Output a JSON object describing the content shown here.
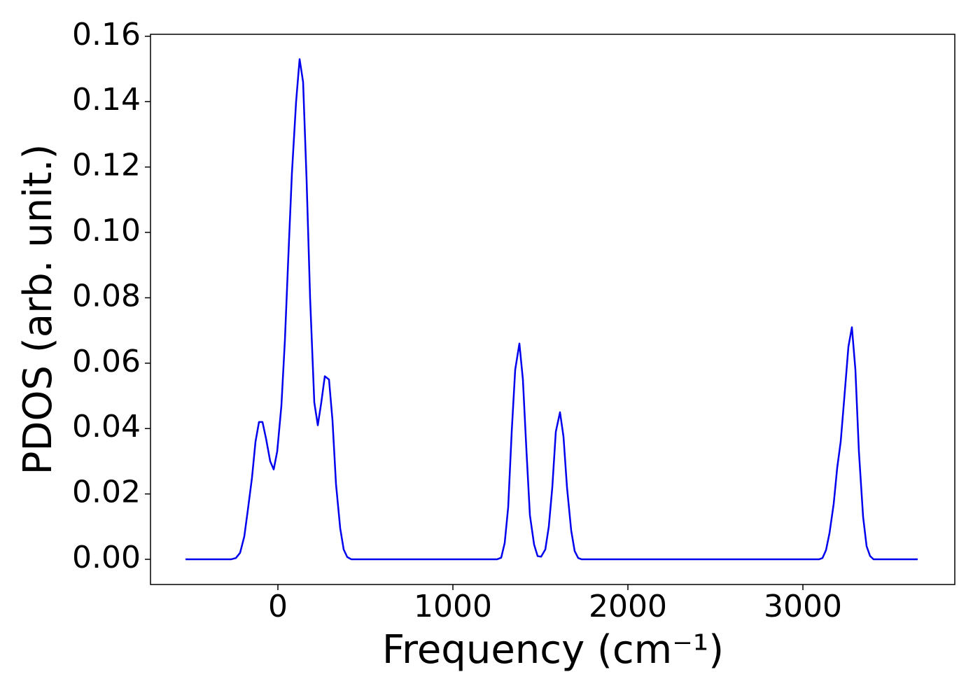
{
  "chart_data": {
    "type": "line",
    "xlabel": "Frequency (cm⁻¹)",
    "ylabel": "PDOS (arb. unit.)",
    "x": [
      -528,
      -268,
      -240,
      -216,
      -192,
      -172,
      -148,
      -128,
      -108,
      -88,
      -68,
      -44,
      -24,
      -4,
      20,
      40,
      60,
      80,
      104,
      124,
      144,
      164,
      184,
      208,
      228,
      248,
      268,
      292,
      312,
      332,
      356,
      376,
      396,
      420,
      1252,
      1276,
      1296,
      1316,
      1336,
      1356,
      1380,
      1400,
      1420,
      1440,
      1464,
      1484,
      1504,
      1528,
      1548,
      1568,
      1588,
      1612,
      1632,
      1652,
      1676,
      1696,
      1716,
      1736,
      3092,
      3112,
      3132,
      3152,
      3176,
      3196,
      3216,
      3236,
      3260,
      3280,
      3300,
      3320,
      3344,
      3364,
      3384,
      3404,
      3656
    ],
    "series": [
      {
        "color": "#0000ee",
        "values": [
          0,
          0,
          0.0004,
          0.002,
          0.007,
          0.015,
          0.025,
          0.036,
          0.042,
          0.042,
          0.037,
          0.03,
          0.0275,
          0.033,
          0.047,
          0.067,
          0.093,
          0.118,
          0.14,
          0.153,
          0.146,
          0.116,
          0.08,
          0.048,
          0.041,
          0.048,
          0.056,
          0.055,
          0.0425,
          0.023,
          0.0095,
          0.003,
          0.0007,
          0,
          0,
          0.0005,
          0.005,
          0.016,
          0.039,
          0.058,
          0.066,
          0.055,
          0.0335,
          0.0135,
          0.0045,
          0.001,
          0.0008,
          0.003,
          0.01,
          0.022,
          0.039,
          0.045,
          0.0375,
          0.022,
          0.0088,
          0.0025,
          0.0004,
          0,
          0,
          0.0004,
          0.0028,
          0.008,
          0.017,
          0.028,
          0.036,
          0.049,
          0.065,
          0.071,
          0.058,
          0.033,
          0.013,
          0.004,
          0.001,
          0,
          0
        ]
      }
    ],
    "xlim": [
      -728,
      3868
    ],
    "ylim": [
      -0.0077,
      0.1606
    ],
    "xticks": [
      0,
      1000,
      2000,
      3000
    ],
    "yticks": [
      {
        "value": 0,
        "label": "0.00"
      },
      0.02,
      0.04,
      0.06,
      0.08,
      {
        "value": 0.1,
        "label": "0.10"
      },
      0.12,
      0.14,
      0.16
    ]
  }
}
